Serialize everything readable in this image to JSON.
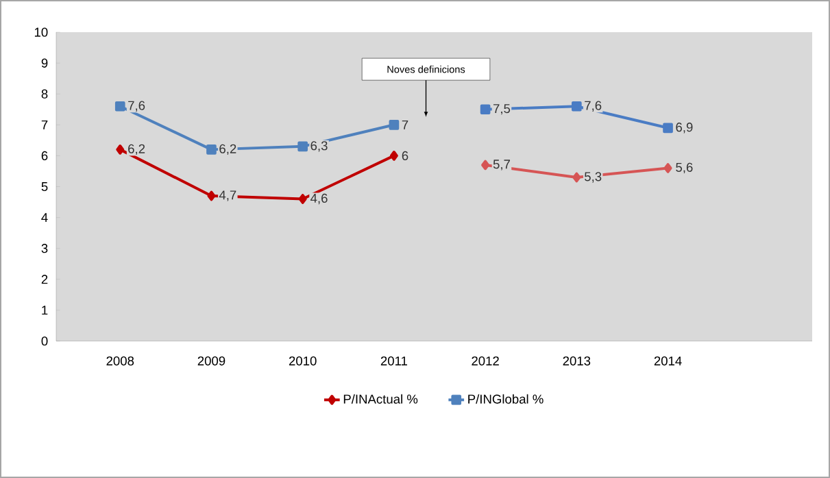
{
  "chart_data": {
    "type": "line",
    "categories": [
      "2008",
      "2009",
      "2010",
      "2011",
      "2012",
      "2013",
      "2014"
    ],
    "series": [
      {
        "name": "P/INActual %",
        "color": "#c00000",
        "marker": "diamond",
        "values": [
          6.2,
          4.7,
          4.6,
          6,
          null,
          null,
          null
        ],
        "value_labels": [
          "6,2",
          "4,7",
          "4,6",
          "6",
          null,
          null,
          null
        ]
      },
      {
        "name": "P/INGlobal %",
        "color": "#4f81bd",
        "marker": "square",
        "values": [
          7.6,
          6.2,
          6.3,
          7,
          null,
          null,
          null
        ],
        "value_labels": [
          "7,6",
          "6,2",
          "6,3",
          "7",
          null,
          null,
          null
        ]
      },
      {
        "color": "#d65555",
        "marker": "diamond",
        "values": [
          null,
          null,
          null,
          null,
          5.7,
          5.3,
          5.6
        ],
        "value_labels": [
          null,
          null,
          null,
          null,
          "5,7",
          "5,3",
          "5,6"
        ]
      },
      {
        "color": "#4a7cc4",
        "marker": "square",
        "values": [
          null,
          null,
          null,
          null,
          7.5,
          7.6,
          6.9
        ],
        "value_labels": [
          null,
          null,
          null,
          null,
          "7,5",
          "7,6",
          "6,9"
        ]
      }
    ],
    "ylim": [
      0,
      10
    ],
    "yticks": [
      0,
      1,
      2,
      3,
      4,
      5,
      6,
      7,
      8,
      9,
      10
    ],
    "legend": "bottom",
    "grid": false,
    "annotations": [
      "Noves definicions"
    ]
  }
}
